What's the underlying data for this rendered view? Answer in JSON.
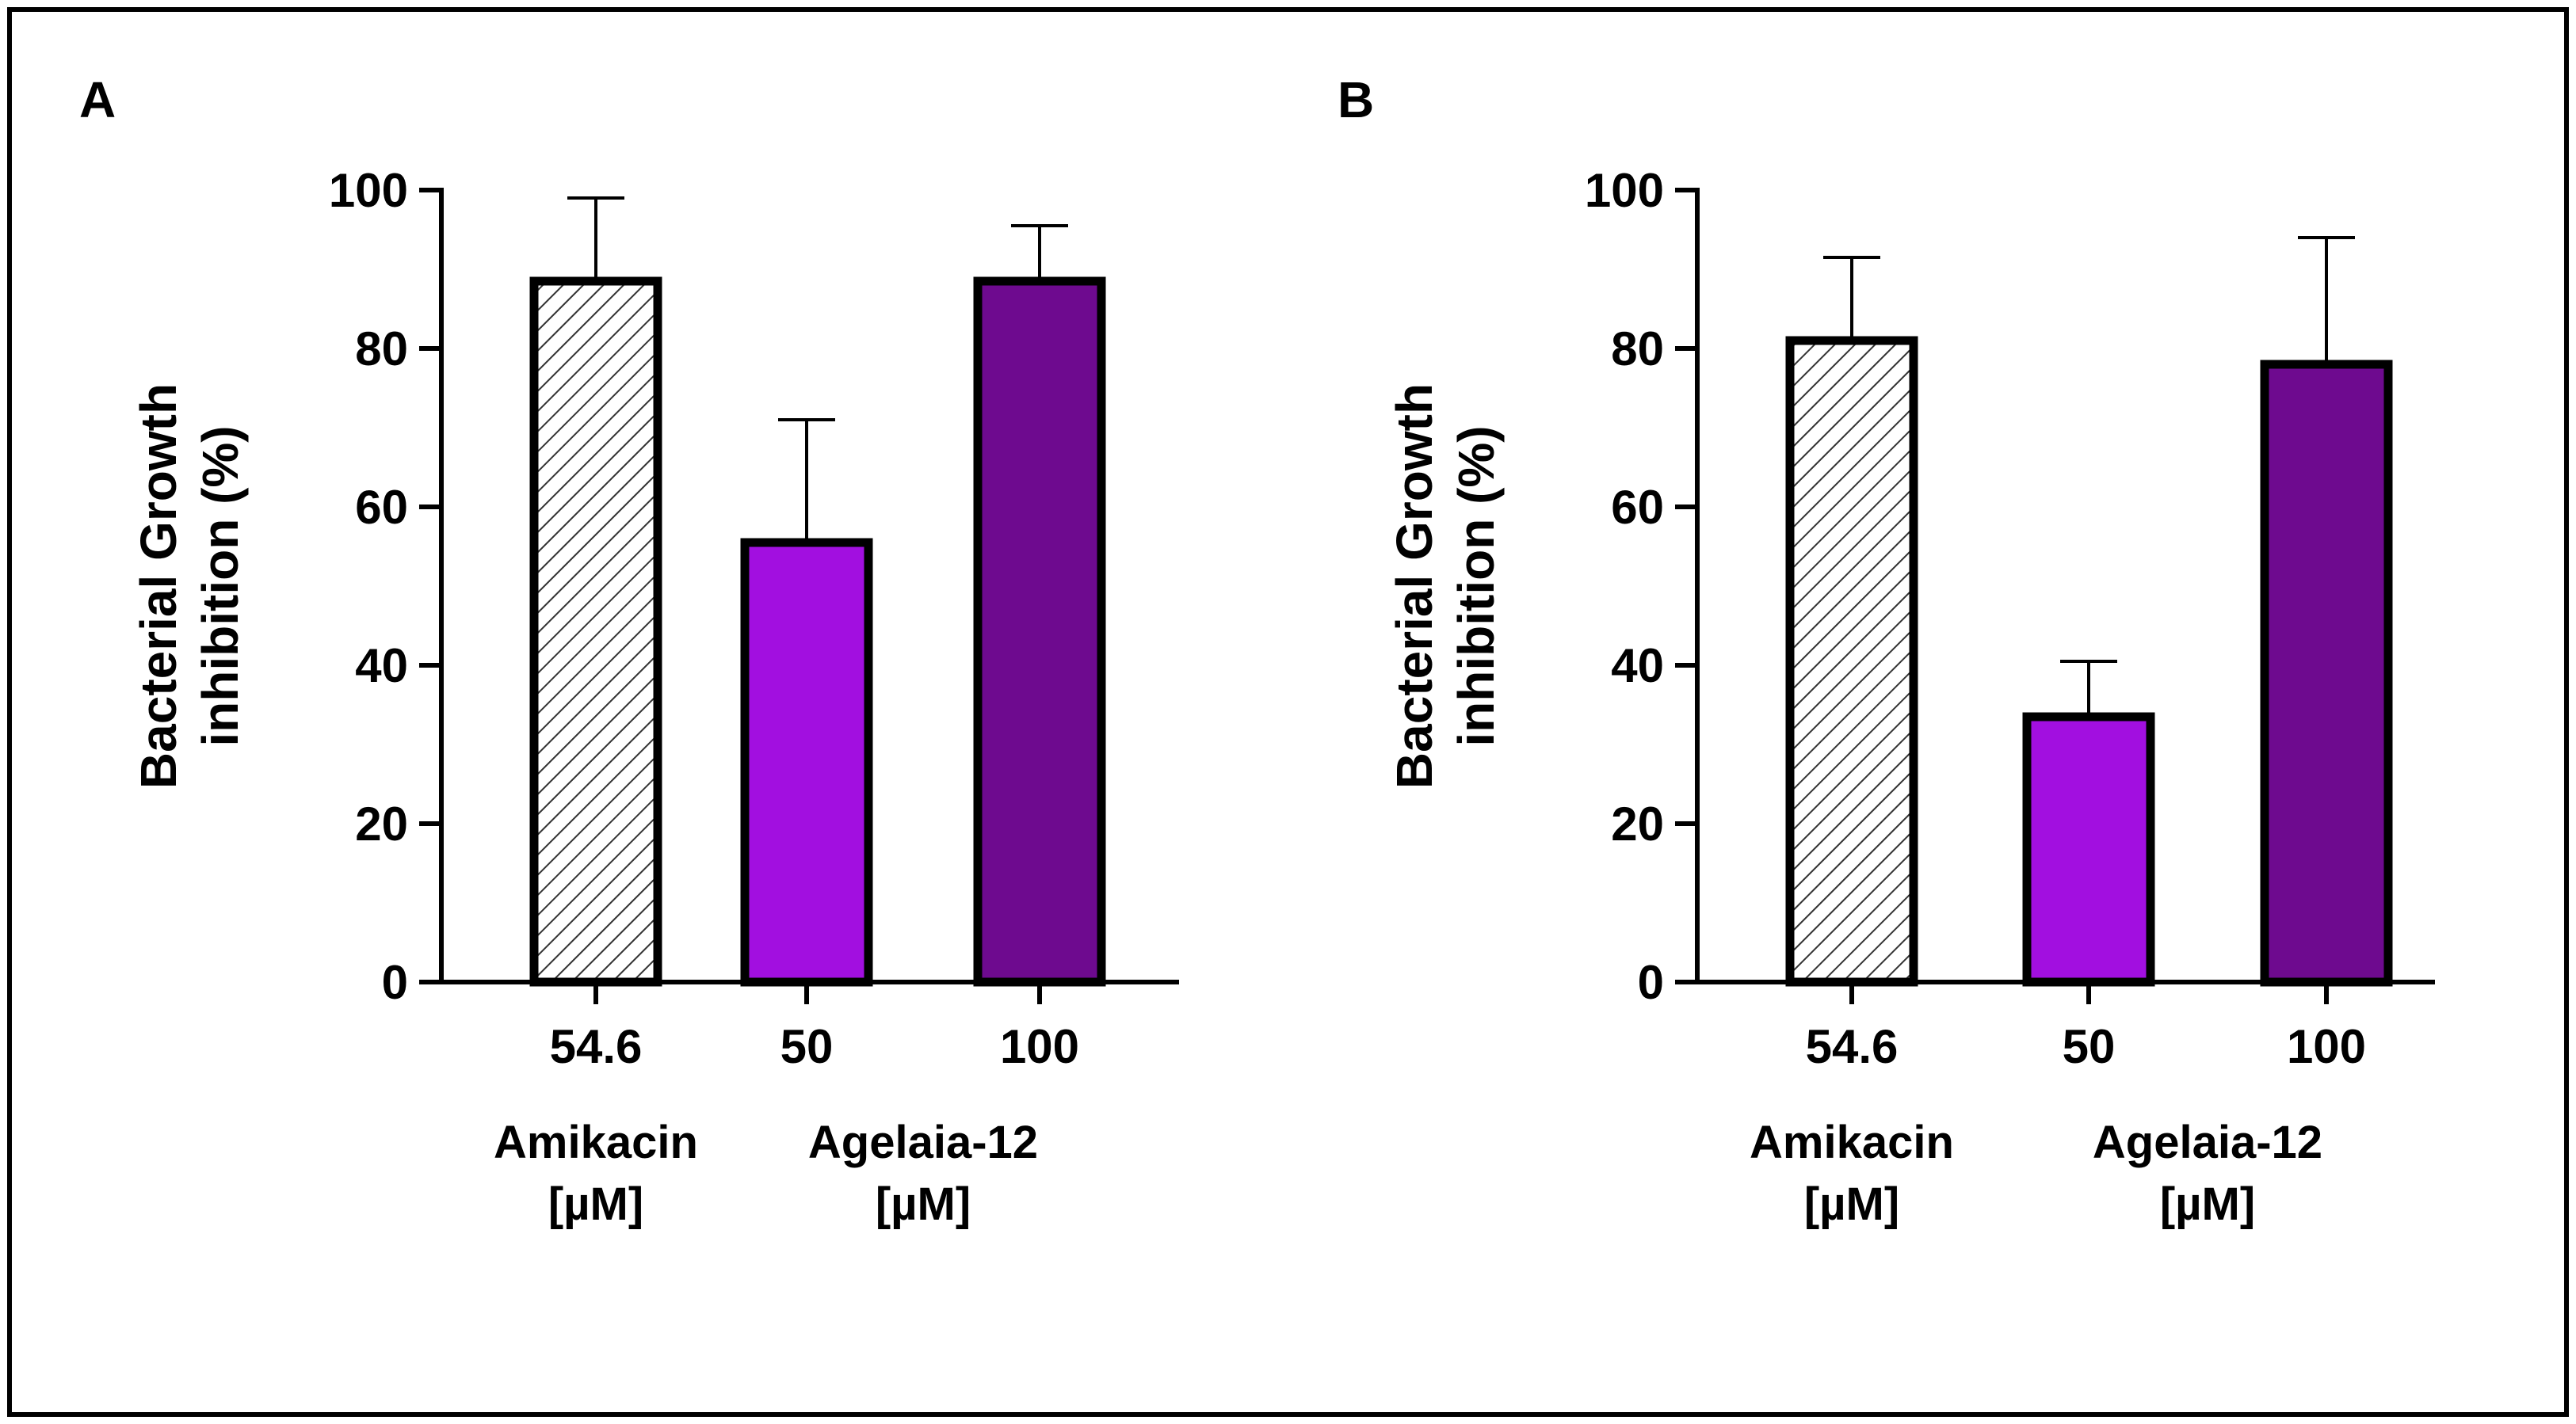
{
  "chart_data": [
    {
      "type": "bar",
      "panel": "A",
      "ylabel_lines": [
        "Bacterial Growth",
        "inhibition (%)"
      ],
      "ylim": [
        0,
        100
      ],
      "yticks": [
        0,
        20,
        40,
        60,
        80,
        100
      ],
      "categories": [
        "54.6",
        "50",
        "100"
      ],
      "values": [
        88.5,
        55.5,
        88.5
      ],
      "errors_upper": [
        10.5,
        15.5,
        7.0
      ],
      "fills": [
        "hatch",
        "#a20fe0",
        "#6e0a8f"
      ],
      "groups": [
        {
          "lines": [
            "Amikacin",
            "[µM]"
          ],
          "categories": [
            0
          ]
        },
        {
          "lines": [
            "Agelaia-12",
            "[µM]"
          ],
          "categories": [
            1,
            2
          ]
        }
      ]
    },
    {
      "type": "bar",
      "panel": "B",
      "ylabel_lines": [
        "Bacterial Growth",
        "inhibition (%)"
      ],
      "ylim": [
        0,
        100
      ],
      "yticks": [
        0,
        20,
        40,
        60,
        80,
        100
      ],
      "categories": [
        "54.6",
        "50",
        "100"
      ],
      "values": [
        81.0,
        33.5,
        78.0
      ],
      "errors_upper": [
        10.5,
        7.0,
        16.0
      ],
      "fills": [
        "hatch",
        "#a20fe0",
        "#6e0a8f"
      ],
      "groups": [
        {
          "lines": [
            "Amikacin",
            "[µM]"
          ],
          "categories": [
            0
          ]
        },
        {
          "lines": [
            "Agelaia-12",
            "[µM]"
          ],
          "categories": [
            1,
            2
          ]
        }
      ]
    }
  ]
}
